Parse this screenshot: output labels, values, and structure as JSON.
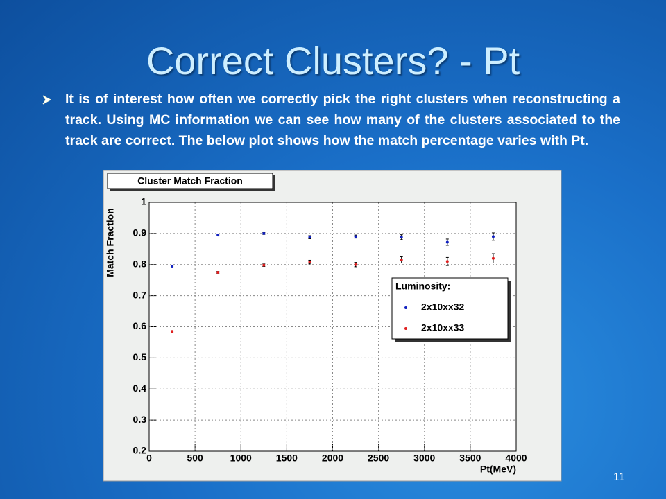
{
  "title": "Correct Clusters? - Pt",
  "bullet": "It is of interest how often we correctly pick the right clusters when reconstructing a track. Using MC information we can see how many of the clusters associated to the track are correct. The below plot shows how the match percentage varies with Pt.",
  "page_number": "11",
  "chart_data": {
    "type": "scatter",
    "title": "Cluster Match Fraction",
    "x_label": "Pt(MeV)",
    "y_label": "Match Fraction",
    "legend_title": "Luminosity:",
    "x": [
      250,
      750,
      1250,
      1750,
      2250,
      2750,
      3250,
      3750
    ],
    "series": [
      {
        "name": "2x10xx32",
        "color": "#1020c0",
        "values": [
          0.795,
          0.895,
          0.9,
          0.888,
          0.89,
          0.888,
          0.872,
          0.89
        ],
        "errors": [
          0.002,
          0.003,
          0.003,
          0.005,
          0.005,
          0.008,
          0.01,
          0.012
        ]
      },
      {
        "name": "2x10xx33",
        "color": "#e02020",
        "values": [
          0.585,
          0.775,
          0.798,
          0.808,
          0.8,
          0.815,
          0.81,
          0.82
        ],
        "errors": [
          0.002,
          0.003,
          0.004,
          0.006,
          0.007,
          0.01,
          0.013,
          0.015
        ]
      }
    ],
    "xlim": [
      0,
      4000
    ],
    "xticks": [
      0,
      500,
      1000,
      1500,
      2000,
      2500,
      3000,
      3500,
      4000
    ],
    "ylim": [
      0.2,
      1
    ],
    "yticks": [
      0.2,
      0.3,
      0.4,
      0.5,
      0.6,
      0.7,
      0.8,
      0.9,
      1
    ],
    "grid": true,
    "legend": "right"
  }
}
